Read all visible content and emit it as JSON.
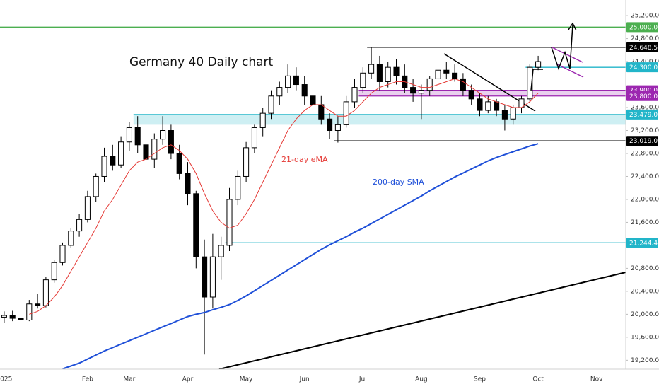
{
  "chart_data": {
    "type": "candlestick",
    "title": "Germany 40 Daily chart",
    "annotations": [
      {
        "text": "21-day eMA",
        "color": "#e53935"
      },
      {
        "text": "200-day SMA",
        "color": "#1e4fd8"
      }
    ],
    "categories": [
      "2025",
      null,
      null,
      null,
      null,
      null,
      null,
      null,
      null,
      null,
      "Feb",
      null,
      null,
      null,
      null,
      "Mar",
      null,
      null,
      null,
      null,
      null,
      null,
      "Apr",
      null,
      null,
      null,
      null,
      null,
      null,
      "May",
      null,
      null,
      null,
      null,
      null,
      null,
      "Jun",
      null,
      null,
      null,
      null,
      null,
      null,
      "Jul",
      null,
      null,
      null,
      null,
      null,
      null,
      "Aug",
      null,
      null,
      null,
      null,
      null,
      null,
      "Sep",
      null,
      null,
      null,
      null,
      null,
      null,
      "Oct",
      null,
      null,
      null,
      null,
      null,
      null,
      "Nov",
      null,
      null,
      null
    ],
    "open": [
      19950,
      19980,
      19930,
      19900,
      20180,
      20150,
      20600,
      20900,
      21200,
      21450,
      21650,
      22050,
      22400,
      22750,
      22600,
      23000,
      23250,
      22950,
      22700,
      23050,
      23200,
      22800,
      22450,
      22100,
      21000,
      20300,
      21000,
      21200,
      22000,
      22400,
      22900,
      23250,
      23500,
      23800,
      23950,
      24150,
      24000,
      23800,
      23650,
      23400,
      23200,
      23300,
      23700,
      23950,
      24200,
      24350,
      24050,
      24300,
      24150,
      23950,
      23850,
      23900,
      24100,
      24250,
      24200,
      24100,
      23900,
      23750,
      23550,
      23700,
      23550,
      23400,
      23600,
      23750,
      24300,
      null,
      null,
      null,
      null,
      null,
      null,
      null,
      null,
      null,
      null
    ],
    "high": [
      20050,
      20060,
      20020,
      20250,
      20350,
      20650,
      20950,
      21250,
      21500,
      21750,
      22150,
      22450,
      22900,
      22950,
      23100,
      23350,
      23450,
      23300,
      23150,
      23450,
      23300,
      22950,
      22650,
      22150,
      21300,
      21400,
      21350,
      22200,
      22500,
      23000,
      23300,
      23600,
      23900,
      24050,
      24350,
      24300,
      24150,
      23950,
      23800,
      23500,
      23450,
      23800,
      24100,
      24300,
      24650,
      24500,
      24400,
      24450,
      24350,
      24100,
      24000,
      24150,
      24350,
      24400,
      24350,
      24200,
      24000,
      23850,
      23800,
      23750,
      23650,
      23650,
      23800,
      24350,
      24500,
      null,
      null,
      null,
      null,
      null,
      null,
      null,
      null,
      null,
      null
    ],
    "low": [
      19850,
      19880,
      19800,
      19880,
      20100,
      20120,
      20550,
      20850,
      21150,
      21350,
      21600,
      21950,
      22300,
      22500,
      22550,
      22850,
      22800,
      22600,
      22550,
      22950,
      22700,
      22350,
      21900,
      20800,
      19300,
      20100,
      20600,
      21100,
      21900,
      22300,
      22800,
      23100,
      23400,
      23650,
      23850,
      23900,
      23650,
      23550,
      23300,
      23050,
      22990,
      23250,
      23600,
      23850,
      24100,
      23900,
      23950,
      24000,
      23850,
      23700,
      23400,
      23800,
      24000,
      24100,
      24050,
      23800,
      23650,
      23450,
      23500,
      23450,
      23200,
      23300,
      23500,
      23700,
      24250,
      null,
      null,
      null,
      null,
      null,
      null,
      null,
      null,
      null,
      null
    ],
    "close": [
      19980,
      19930,
      19900,
      20180,
      20150,
      20600,
      20900,
      21200,
      21450,
      21650,
      22050,
      22400,
      22750,
      22600,
      23000,
      23250,
      22950,
      22700,
      23050,
      23200,
      22800,
      22450,
      22100,
      21000,
      20300,
      21000,
      21200,
      22000,
      22400,
      22900,
      23250,
      23500,
      23800,
      23950,
      24150,
      24000,
      23800,
      23650,
      23400,
      23200,
      23300,
      23700,
      23950,
      24200,
      24350,
      24050,
      24300,
      24150,
      23950,
      23850,
      23900,
      24100,
      24250,
      24200,
      24100,
      23900,
      23750,
      23550,
      23700,
      23550,
      23400,
      23600,
      23750,
      24300,
      24400,
      null,
      null,
      null,
      null,
      null,
      null,
      null,
      null,
      null,
      null
    ],
    "bull_color": "#ffffff",
    "bear_color": "#000000",
    "series": [
      {
        "name": "21-day eMA",
        "color": "#e53935",
        "values": [
          null,
          null,
          null,
          20000,
          20050,
          20150,
          20300,
          20500,
          20750,
          21000,
          21250,
          21500,
          21800,
          22000,
          22250,
          22500,
          22650,
          22700,
          22800,
          22900,
          22950,
          22850,
          22700,
          22450,
          22100,
          21800,
          21600,
          21500,
          21550,
          21750,
          22000,
          22300,
          22600,
          22900,
          23200,
          23400,
          23550,
          23650,
          23650,
          23550,
          23450,
          23450,
          23550,
          23700,
          23850,
          23950,
          24000,
          24050,
          24050,
          24000,
          23950,
          23950,
          24000,
          24050,
          24100,
          24050,
          23950,
          23850,
          23750,
          23700,
          23650,
          23600,
          23600,
          23700,
          23850,
          null,
          null,
          null,
          null,
          null,
          null,
          null,
          null,
          null,
          null
        ]
      },
      {
        "name": "200-day SMA",
        "color": "#1e4fd8",
        "values": [
          null,
          null,
          null,
          null,
          null,
          null,
          null,
          19050,
          19100,
          19150,
          19220,
          19290,
          19360,
          19420,
          19480,
          19540,
          19600,
          19660,
          19720,
          19780,
          19840,
          19900,
          19960,
          20000,
          20030,
          20080,
          20120,
          20170,
          20240,
          20320,
          20410,
          20500,
          20590,
          20680,
          20770,
          20860,
          20950,
          21040,
          21130,
          21210,
          21280,
          21350,
          21430,
          21500,
          21580,
          21660,
          21740,
          21820,
          21900,
          21980,
          22060,
          22150,
          22230,
          22310,
          22390,
          22460,
          22530,
          22600,
          22670,
          22730,
          22780,
          22830,
          22880,
          22930,
          22970,
          null,
          null,
          null,
          null,
          null,
          null,
          null,
          null,
          null,
          null
        ]
      }
    ],
    "levels": [
      {
        "value": 25000,
        "label": "25,000.0",
        "color": "#4caf50"
      },
      {
        "value": 24648.5,
        "label": "24,648.5",
        "color": "#000000"
      },
      {
        "value": 24300,
        "label": "24,300.0",
        "color": "#22b5c9"
      },
      {
        "value": 23900,
        "label": "23,900.0",
        "color": "#9c27b0",
        "band_to": 23800
      },
      {
        "value": 23800,
        "label": "23,800.0",
        "color": "#9c27b0"
      },
      {
        "value": 23479,
        "label": "23,479.0",
        "color": "#22b5c9",
        "band_to": 23300
      },
      {
        "value": 23019,
        "label": "23,019.0",
        "color": "#000000"
      },
      {
        "value": 21244.4,
        "label": "21,244.4",
        "color": "#22b5c9"
      }
    ],
    "ylim": [
      19044,
      25472
    ],
    "yticks": [
      {
        "value": 25200,
        "label": "25,200.0"
      },
      {
        "value": 24800,
        "label": "24,800.0"
      },
      {
        "value": 24400,
        "label": "24,400.0"
      },
      {
        "value": 23600,
        "label": "23,600.0"
      },
      {
        "value": 23200,
        "label": "23,200.0"
      },
      {
        "value": 22800,
        "label": "22,800.0"
      },
      {
        "value": 22400,
        "label": "22,400.0"
      },
      {
        "value": 22000,
        "label": "22,000.0"
      },
      {
        "value": 21600,
        "label": "21,600.0"
      },
      {
        "value": 20800,
        "label": "20,800.0"
      },
      {
        "value": 20400,
        "label": "20,400.0"
      },
      {
        "value": 20000,
        "label": "20,000.0"
      },
      {
        "value": 19600,
        "label": "19,600.0"
      },
      {
        "value": 19200,
        "label": "19,200.0"
      }
    ],
    "grid": false
  }
}
